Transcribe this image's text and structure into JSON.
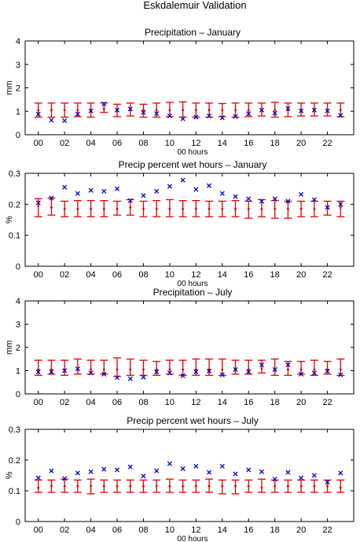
{
  "figure": {
    "title": "Eskdalemuir Validation"
  },
  "chart_data": [
    {
      "type": "scatter",
      "title": "Precipitation – January",
      "xlabel": "00 hours",
      "ylabel": "mm",
      "xlim": [
        -1,
        24
      ],
      "ylim": [
        0,
        4
      ],
      "yticks": [
        0,
        1,
        2,
        3,
        4
      ],
      "xticks": [
        0,
        2,
        4,
        6,
        8,
        10,
        12,
        14,
        16,
        18,
        20,
        22
      ],
      "xticklabels": [
        "00",
        "02",
        "04",
        "06",
        "08",
        "10",
        "12",
        "14",
        "16",
        "18",
        "20",
        "22"
      ],
      "x": [
        0,
        1,
        2,
        3,
        4,
        5,
        6,
        7,
        8,
        9,
        10,
        11,
        12,
        13,
        14,
        15,
        16,
        17,
        18,
        19,
        20,
        21,
        22,
        23
      ],
      "series": [
        {
          "kind": "model-range",
          "lower": [
            0.75,
            0.75,
            0.75,
            0.77,
            0.75,
            0.95,
            0.77,
            0.8,
            0.75,
            0.75,
            0.77,
            0.75,
            0.75,
            0.75,
            0.77,
            0.75,
            0.77,
            0.8,
            0.75,
            0.77,
            0.8,
            0.8,
            0.8,
            0.77
          ],
          "middle": [
            1.05,
            1.05,
            1.05,
            1.05,
            1.05,
            1.1,
            1.05,
            1.05,
            1.05,
            1.05,
            1.05,
            1.05,
            1.05,
            1.05,
            1.05,
            1.05,
            1.05,
            1.05,
            1.05,
            1.05,
            1.05,
            1.05,
            1.05,
            1.05
          ],
          "upper": [
            1.35,
            1.35,
            1.35,
            1.35,
            1.35,
            1.35,
            1.3,
            1.35,
            1.3,
            1.35,
            1.38,
            1.4,
            1.35,
            1.35,
            1.33,
            1.35,
            1.35,
            1.35,
            1.38,
            1.35,
            1.35,
            1.35,
            1.35,
            1.35
          ]
        },
        {
          "kind": "observed",
          "values": [
            0.88,
            0.62,
            0.6,
            0.88,
            1.02,
            1.32,
            1.05,
            1.1,
            0.95,
            0.9,
            0.8,
            0.68,
            0.75,
            0.8,
            0.72,
            0.78,
            0.9,
            1.05,
            0.92,
            1.12,
            1.02,
            1.05,
            1.02,
            0.82
          ]
        }
      ]
    },
    {
      "type": "scatter",
      "title": "Precip percent wet hours – January",
      "xlabel": "00 hours",
      "ylabel": "%",
      "xlim": [
        -1,
        24
      ],
      "ylim": [
        0,
        0.3
      ],
      "yticks": [
        0,
        0.1,
        0.2,
        0.3
      ],
      "xticks": [
        0,
        2,
        4,
        6,
        8,
        10,
        12,
        14,
        16,
        18,
        20,
        22
      ],
      "xticklabels": [
        "00",
        "02",
        "04",
        "06",
        "08",
        "10",
        "12",
        "14",
        "16",
        "18",
        "20",
        "22"
      ],
      "x": [
        0,
        1,
        2,
        3,
        4,
        5,
        6,
        7,
        8,
        9,
        10,
        11,
        12,
        13,
        14,
        15,
        16,
        17,
        18,
        19,
        20,
        21,
        22,
        23
      ],
      "series": [
        {
          "kind": "model-range",
          "lower": [
            0.16,
            0.165,
            0.16,
            0.16,
            0.16,
            0.16,
            0.165,
            0.165,
            0.16,
            0.16,
            0.16,
            0.16,
            0.16,
            0.16,
            0.16,
            0.16,
            0.155,
            0.16,
            0.155,
            0.155,
            0.16,
            0.16,
            0.165,
            0.16
          ],
          "middle": [
            0.195,
            0.19,
            0.185,
            0.185,
            0.185,
            0.185,
            0.185,
            0.19,
            0.185,
            0.185,
            0.185,
            0.185,
            0.185,
            0.185,
            0.185,
            0.185,
            0.185,
            0.185,
            0.185,
            0.185,
            0.185,
            0.185,
            0.19,
            0.19
          ],
          "upper": [
            0.218,
            0.22,
            0.21,
            0.212,
            0.212,
            0.212,
            0.21,
            0.215,
            0.21,
            0.212,
            0.215,
            0.212,
            0.212,
            0.21,
            0.21,
            0.212,
            0.21,
            0.215,
            0.212,
            0.21,
            0.21,
            0.21,
            0.21,
            0.21
          ]
        },
        {
          "kind": "observed",
          "values": [
            0.205,
            0.22,
            0.255,
            0.235,
            0.245,
            0.242,
            0.25,
            0.212,
            0.228,
            0.242,
            0.258,
            0.278,
            0.248,
            0.26,
            0.235,
            0.225,
            0.218,
            0.21,
            0.218,
            0.21,
            0.232,
            0.215,
            0.19,
            0.2
          ]
        }
      ]
    },
    {
      "type": "scatter",
      "title": "Precipitation – July",
      "xlabel": "",
      "ylabel": "mm",
      "xlim": [
        -1,
        24
      ],
      "ylim": [
        0,
        4
      ],
      "yticks": [
        0,
        1,
        2,
        3,
        4
      ],
      "xticks": [
        0,
        2,
        4,
        6,
        8,
        10,
        12,
        14,
        16,
        18,
        20,
        22
      ],
      "xticklabels": [
        "00",
        "02",
        "04",
        "06",
        "08",
        "10",
        "12",
        "14",
        "16",
        "18",
        "20",
        "22"
      ],
      "x": [
        0,
        1,
        2,
        3,
        4,
        5,
        6,
        7,
        8,
        9,
        10,
        11,
        12,
        13,
        14,
        15,
        16,
        17,
        18,
        19,
        20,
        21,
        22,
        23
      ],
      "series": [
        {
          "kind": "model-range",
          "lower": [
            0.8,
            0.85,
            0.8,
            0.85,
            0.85,
            0.85,
            0.75,
            0.8,
            0.8,
            0.8,
            0.85,
            0.8,
            0.8,
            0.8,
            0.8,
            0.85,
            0.85,
            0.9,
            0.8,
            0.8,
            0.85,
            0.8,
            0.85,
            0.8
          ],
          "middle": [
            1.05,
            1.05,
            1.05,
            1.05,
            1.05,
            1.05,
            1.05,
            1.05,
            1.05,
            1.05,
            1.05,
            1.05,
            1.05,
            1.05,
            1.05,
            1.05,
            1.05,
            1.1,
            1.05,
            1.05,
            1.05,
            1.05,
            1.05,
            1.05
          ],
          "upper": [
            1.45,
            1.45,
            1.45,
            1.5,
            1.45,
            1.45,
            1.55,
            1.5,
            1.45,
            1.4,
            1.45,
            1.45,
            1.5,
            1.5,
            1.5,
            1.45,
            1.45,
            1.45,
            1.5,
            1.4,
            1.4,
            1.45,
            1.4,
            1.5
          ]
        },
        {
          "kind": "observed",
          "values": [
            0.95,
            0.95,
            1.0,
            1.08,
            0.9,
            0.85,
            0.7,
            0.65,
            0.72,
            0.95,
            0.9,
            0.78,
            0.95,
            0.98,
            0.82,
            1.05,
            0.95,
            1.25,
            1.05,
            1.25,
            0.85,
            0.9,
            0.98,
            0.82
          ]
        }
      ]
    },
    {
      "type": "scatter",
      "title": "Precip percent wet hours – July",
      "xlabel": "00 hours",
      "ylabel": "%",
      "xlim": [
        -1,
        24
      ],
      "ylim": [
        0,
        0.3
      ],
      "yticks": [
        0,
        0.1,
        0.2,
        0.3
      ],
      "xticks": [
        0,
        2,
        4,
        6,
        8,
        10,
        12,
        14,
        16,
        18,
        20,
        22
      ],
      "xticklabels": [
        "00",
        "02",
        "04",
        "06",
        "08",
        "10",
        "12",
        "14",
        "16",
        "18",
        "20",
        "22"
      ],
      "x": [
        0,
        1,
        2,
        3,
        4,
        5,
        6,
        7,
        8,
        9,
        10,
        11,
        12,
        13,
        14,
        15,
        16,
        17,
        18,
        19,
        20,
        21,
        22,
        23
      ],
      "series": [
        {
          "kind": "model-range",
          "lower": [
            0.095,
            0.095,
            0.095,
            0.095,
            0.09,
            0.095,
            0.095,
            0.095,
            0.095,
            0.095,
            0.095,
            0.095,
            0.095,
            0.095,
            0.09,
            0.09,
            0.095,
            0.095,
            0.095,
            0.095,
            0.095,
            0.095,
            0.095,
            0.095
          ],
          "middle": [
            0.11,
            0.115,
            0.115,
            0.115,
            0.115,
            0.115,
            0.115,
            0.115,
            0.115,
            0.115,
            0.115,
            0.115,
            0.115,
            0.115,
            0.115,
            0.115,
            0.115,
            0.11,
            0.115,
            0.115,
            0.115,
            0.115,
            0.115,
            0.11
          ],
          "upper": [
            0.135,
            0.135,
            0.138,
            0.135,
            0.138,
            0.135,
            0.135,
            0.135,
            0.135,
            0.135,
            0.138,
            0.135,
            0.135,
            0.138,
            0.135,
            0.135,
            0.135,
            0.138,
            0.135,
            0.135,
            0.135,
            0.135,
            0.135,
            0.135
          ]
        },
        {
          "kind": "observed",
          "values": [
            0.142,
            0.165,
            0.14,
            0.158,
            0.162,
            0.17,
            0.168,
            0.178,
            0.148,
            0.165,
            0.188,
            0.172,
            0.18,
            0.16,
            0.18,
            0.155,
            0.168,
            0.162,
            0.138,
            0.16,
            0.142,
            0.15,
            0.128,
            0.158
          ]
        }
      ]
    }
  ]
}
